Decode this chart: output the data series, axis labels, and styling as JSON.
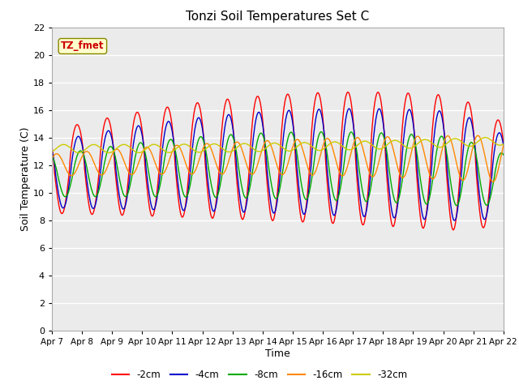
{
  "title": "Tonzi Soil Temperatures Set C",
  "xlabel": "Time",
  "ylabel": "Soil Temperature (C)",
  "ylim": [
    0,
    22
  ],
  "yticks": [
    0,
    2,
    4,
    6,
    8,
    10,
    12,
    14,
    16,
    18,
    20,
    22
  ],
  "xtick_labels": [
    "Apr 7",
    "Apr 8",
    "Apr 9",
    "Apr 10",
    "Apr 11",
    "Apr 12",
    "Apr 13",
    "Apr 14",
    "Apr 15",
    "Apr 16",
    "Apr 17",
    "Apr 18",
    "Apr 19",
    "Apr 20",
    "Apr 21",
    "Apr 22"
  ],
  "legend_labels": [
    "-2cm",
    "-4cm",
    "-8cm",
    "-16cm",
    "-32cm"
  ],
  "line_colors": [
    "#ff0000",
    "#0000cc",
    "#00aa00",
    "#ff8800",
    "#cccc00"
  ],
  "annotation_text": "TZ_fmet",
  "annotation_bg": "#ffffcc",
  "annotation_edge": "#888800",
  "annotation_color": "#cc0000",
  "plot_bg": "#ebebeb",
  "fig_bg": "#ffffff",
  "grid_color": "#ffffff"
}
